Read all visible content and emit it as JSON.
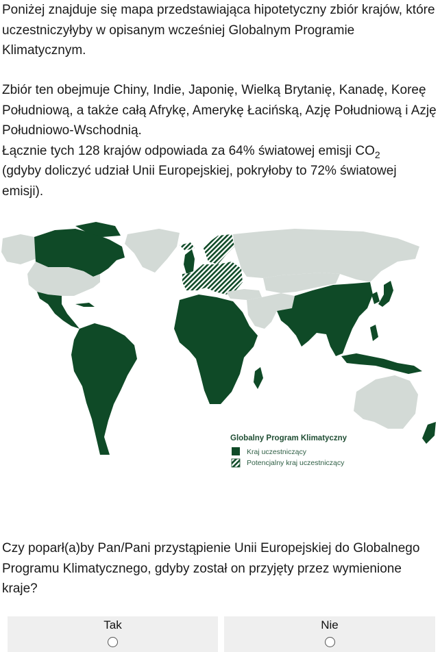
{
  "intro": {
    "paragraph1": "Poniżej znajduje się mapa przedstawiająca hipotetyczny zbiór krajów, które uczestniczyłyby w opisanym wcześniej Globalnym Programie Klimatycznym.",
    "paragraph2_line1": "Zbiór ten obejmuje Chiny, Indie, Japonię, Wielką Brytanię, Kanadę, Koreę Południową, a także całą Afrykę, Amerykę Łacińską, Azję Południową i Azję Południowo-Wschodnią.",
    "paragraph2_line2_before": "Łącznie tych 128 krajów odpowiada za 64% światowej emisji CO",
    "paragraph2_sub": "2",
    "paragraph2_line3": "(gdyby doliczyć udział Unii Europejskiej, pokryłoby to 72% światowej emisji)."
  },
  "map": {
    "legend_title": "Globalny Program Klimatyczny",
    "legend_member": "Kraj uczestniczący",
    "legend_potential": "Potencjalny kraj uczestniczący",
    "colors": {
      "member": "#0f4a27",
      "non_member": "#d3dad6",
      "outline": "#ffffff"
    }
  },
  "question": {
    "text": "Czy poparł(a)by Pan/Pani przystąpienie Unii Europejskiej do Globalnego Programu Klimatycznego, gdyby został on przyjęty przez wymienione kraje?"
  },
  "answers": [
    {
      "label": "Tak",
      "selected": false
    },
    {
      "label": "Nie",
      "selected": false
    }
  ]
}
